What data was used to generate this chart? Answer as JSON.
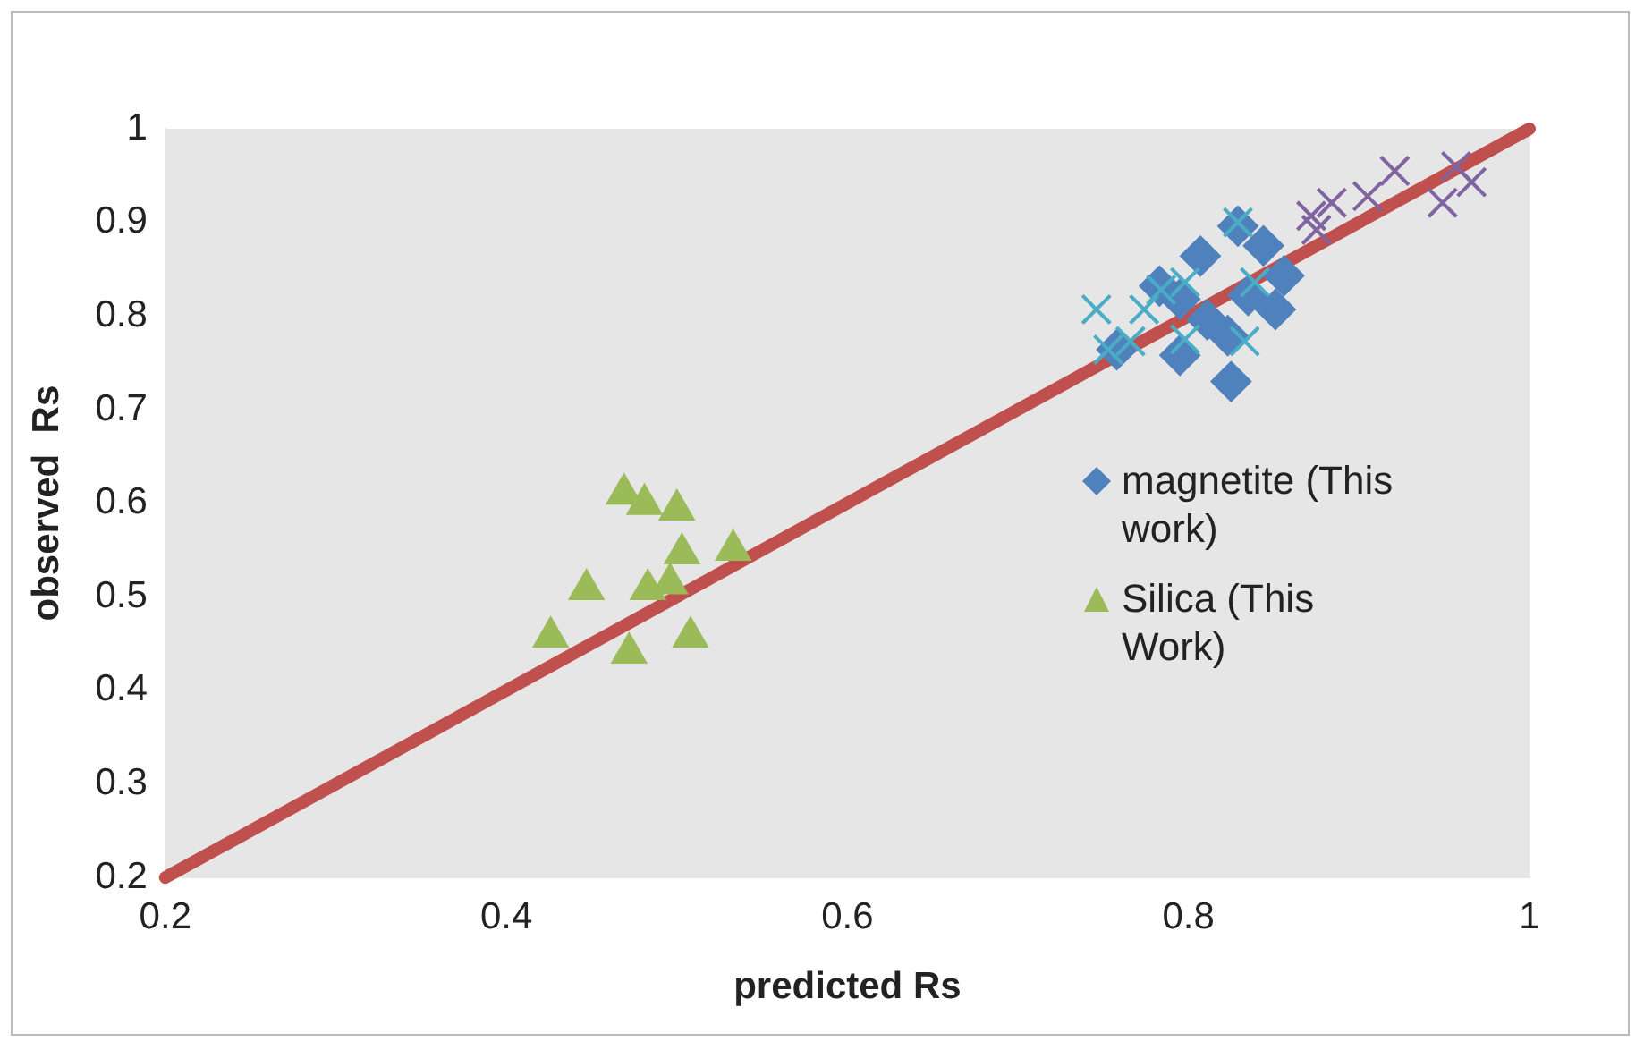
{
  "chart_data": {
    "type": "scatter",
    "xlabel": "predicted Rs",
    "ylabel": "observed  Rs",
    "xlim": [
      0.2,
      1
    ],
    "xticks": [
      0.2,
      0.4,
      0.6,
      0.8,
      1
    ],
    "ylim": [
      0.2,
      1
    ],
    "yticks": [
      0.2,
      0.3,
      0.4,
      0.5,
      0.6,
      0.7,
      0.8,
      0.9,
      1
    ],
    "grid": false,
    "legend": "right",
    "series": [
      {
        "type": "line",
        "color": "#c0504d",
        "marker": "none",
        "x": [
          0.2,
          1
        ],
        "values": [
          0.2,
          1
        ]
      },
      {
        "name": "magnetite (This work)",
        "color": "#4f81bd",
        "marker": "diamond",
        "x": [
          0.829,
          0.844,
          0.856,
          0.807,
          0.783,
          0.795,
          0.811,
          0.851,
          0.835,
          0.795,
          0.823,
          0.825,
          0.758
        ],
        "values": [
          0.896,
          0.875,
          0.843,
          0.864,
          0.832,
          0.818,
          0.796,
          0.807,
          0.822,
          0.758,
          0.779,
          0.73,
          0.764
        ]
      },
      {
        "name": "Silica (This Work)",
        "color": "#9bbb59",
        "marker": "triangle",
        "x": [
          0.469,
          0.481,
          0.5,
          0.533,
          0.447,
          0.503,
          0.483,
          0.496,
          0.426,
          0.472,
          0.508
        ],
        "values": [
          0.61,
          0.599,
          0.593,
          0.55,
          0.508,
          0.546,
          0.508,
          0.514,
          0.457,
          0.44,
          0.457
        ]
      },
      {
        "color": "#4bacc6",
        "marker": "cross",
        "x": [
          0.746,
          0.753,
          0.766,
          0.784,
          0.798,
          0.829,
          0.798,
          0.833,
          0.839,
          0.774
        ],
        "values": [
          0.807,
          0.764,
          0.773,
          0.828,
          0.836,
          0.9,
          0.775,
          0.773,
          0.836,
          0.807
        ]
      },
      {
        "color": "#8064a2",
        "marker": "cross",
        "x": [
          0.872,
          0.884,
          0.905,
          0.921,
          0.949,
          0.957,
          0.966,
          0.875
        ],
        "values": [
          0.907,
          0.921,
          0.928,
          0.955,
          0.921,
          0.96,
          0.943,
          0.892
        ]
      }
    ]
  }
}
